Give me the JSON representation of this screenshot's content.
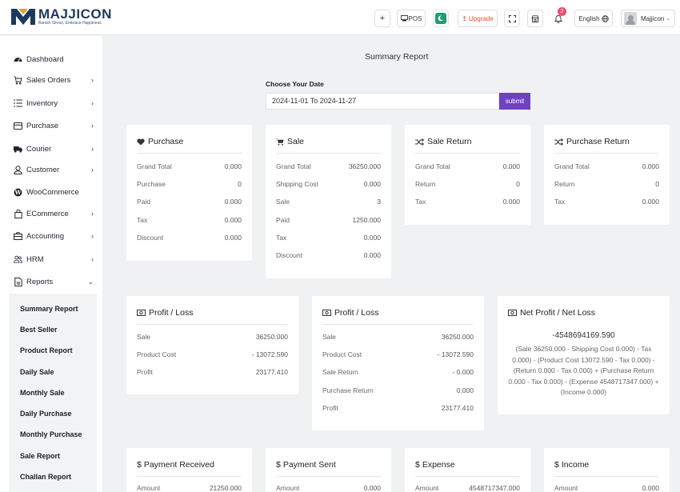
{
  "brand": {
    "name": "MAJJICON",
    "tagline": "Banish Stress, Embrace Happiness"
  },
  "header": {
    "plus_label": "+",
    "pos_label": "POS",
    "upgrade_label": "Upgrade",
    "notification_count": "2",
    "language_label": "English",
    "user_name": "Majjicon"
  },
  "sidebar": {
    "items": [
      {
        "label": "Dashboard",
        "icon": "dashboard-icon",
        "arrow": ""
      },
      {
        "label": "Sales Orders",
        "icon": "cart-icon",
        "arrow": "›"
      },
      {
        "label": "Inventory",
        "icon": "list-icon",
        "arrow": "›"
      },
      {
        "label": "Purchase",
        "icon": "card-icon",
        "arrow": "›"
      },
      {
        "label": "Courier",
        "icon": "truck-icon",
        "arrow": "›"
      },
      {
        "label": "Customer",
        "icon": "user-icon",
        "arrow": "›"
      },
      {
        "label": "WooCommerce",
        "icon": "wordpress-icon",
        "arrow": ""
      },
      {
        "label": "ECommerce",
        "icon": "bag-icon",
        "arrow": "›"
      },
      {
        "label": "Accounting",
        "icon": "briefcase-icon",
        "arrow": "›"
      },
      {
        "label": "HRM",
        "icon": "users-icon",
        "arrow": "›"
      },
      {
        "label": "Reports",
        "icon": "report-icon",
        "arrow": "⌄"
      }
    ],
    "reports_submenu": [
      "Summary Report",
      "Best Seller",
      "Product Report",
      "Daily Sale",
      "Monthly Sale",
      "Daily Purchase",
      "Monthly Purchase",
      "Sale Report",
      "Challan Report"
    ]
  },
  "main": {
    "title": "Summary Report",
    "date_label": "Choose Your Date",
    "date_value": "2024-11-01 To 2024-11-27",
    "submit_label": "submit"
  },
  "cards": {
    "purchase": {
      "title": "Purchase",
      "rows": [
        {
          "label": "Grand Total",
          "value": "0.000"
        },
        {
          "label": "Purchase",
          "value": "0"
        },
        {
          "label": "Paid",
          "value": "0.000"
        },
        {
          "label": "Tax",
          "value": "0.000"
        },
        {
          "label": "Discount",
          "value": "0.000"
        }
      ]
    },
    "sale": {
      "title": "Sale",
      "rows": [
        {
          "label": "Grand Total",
          "value": "36250.000"
        },
        {
          "label": "Shipping Cost",
          "value": "0.000"
        },
        {
          "label": "Sale",
          "value": "3"
        },
        {
          "label": "Paid",
          "value": "1250.000"
        },
        {
          "label": "Tax",
          "value": "0.000"
        },
        {
          "label": "Discount",
          "value": "0.000"
        }
      ]
    },
    "sale_return": {
      "title": "Sale Return",
      "rows": [
        {
          "label": "Grand Total",
          "value": "0.000"
        },
        {
          "label": "Return",
          "value": "0"
        },
        {
          "label": "Tax",
          "value": "0.000"
        }
      ]
    },
    "purchase_return": {
      "title": "Purchase Return",
      "rows": [
        {
          "label": "Grand Total",
          "value": "0.000"
        },
        {
          "label": "Return",
          "value": "0"
        },
        {
          "label": "Tax",
          "value": "0.000"
        }
      ]
    },
    "profit_loss_1": {
      "title": "Profit / Loss",
      "rows": [
        {
          "label": "Sale",
          "value": "36250.000"
        },
        {
          "label": "Product Cost",
          "value": "- 13072.590"
        },
        {
          "label": "Profit",
          "value": "23177.410"
        }
      ]
    },
    "profit_loss_2": {
      "title": "Profit / Loss",
      "rows": [
        {
          "label": "Sale",
          "value": "36250.000"
        },
        {
          "label": "Product Cost",
          "value": "- 13072.590"
        },
        {
          "label": "Sale Return",
          "value": "- 0.000"
        },
        {
          "label": "Purchase Return",
          "value": "0.000"
        },
        {
          "label": "Profit",
          "value": "23177.410"
        }
      ]
    },
    "net_profit": {
      "title": "Net Profit / Net Loss",
      "value": "-4548694169.590",
      "formula": "(Sale 36250.000 - Shipping Cost 0.000) - Tax 0.000) - (Product Cost 13072.590 - Tax 0.000) - (Return 0.000 - Tax 0.000) + (Purchase Return 0.000 - Tax 0.000) - (Expense 4548717347.000) + (Income 0.000)"
    },
    "payment_received": {
      "title": "Payment Received",
      "rows": [
        {
          "label": "Amount",
          "value": "21250.000"
        }
      ]
    },
    "payment_sent": {
      "title": "Payment Sent",
      "rows": [
        {
          "label": "Amount",
          "value": "0.000"
        }
      ]
    },
    "expense": {
      "title": "Expense",
      "rows": [
        {
          "label": "Amount",
          "value": "4548717347.000"
        }
      ]
    },
    "income": {
      "title": "Income",
      "rows": [
        {
          "label": "Amount",
          "value": "0.000"
        }
      ]
    }
  },
  "colors": {
    "accent": "#6f42c1",
    "upgrade": "#e2542f",
    "badge": "#ef4c6e",
    "brand": "#1d3a5c",
    "green": "#1e9e73"
  }
}
